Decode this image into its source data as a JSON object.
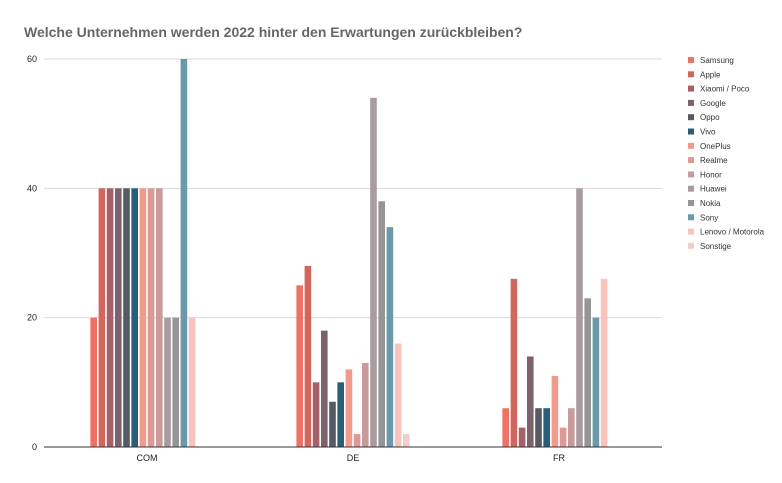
{
  "chart_data": {
    "type": "bar",
    "title": "Welche Unternehmen werden 2022 hinter den Erwartungen zurückbleiben?",
    "xlabel": "",
    "ylabel": "",
    "categories": [
      "COM",
      "DE",
      "FR"
    ],
    "ylim": [
      0,
      60
    ],
    "yticks": [
      0,
      20,
      40,
      60
    ],
    "grid": true,
    "legend_position": "right",
    "series": [
      {
        "name": "Samsung",
        "color": "#ee7163",
        "values": [
          20,
          25,
          6
        ]
      },
      {
        "name": "Apple",
        "color": "#d0665e",
        "values": [
          40,
          28,
          26
        ]
      },
      {
        "name": "Xiaomi / Poco",
        "color": "#a5606a",
        "values": [
          40,
          10,
          3
        ]
      },
      {
        "name": "Google",
        "color": "#7d616c",
        "values": [
          40,
          18,
          14
        ]
      },
      {
        "name": "Oppo",
        "color": "#555a64",
        "values": [
          40,
          7,
          6
        ]
      },
      {
        "name": "Vivo",
        "color": "#295d7a",
        "values": [
          40,
          10,
          6
        ]
      },
      {
        "name": "OnePlus",
        "color": "#f29a8c",
        "values": [
          40,
          12,
          11
        ]
      },
      {
        "name": "Realme",
        "color": "#dc9a94",
        "values": [
          40,
          2,
          3
        ]
      },
      {
        "name": "Honor",
        "color": "#c89a9a",
        "values": [
          40,
          13,
          6
        ]
      },
      {
        "name": "Huawei",
        "color": "#a89ca0",
        "values": [
          20,
          54,
          40
        ]
      },
      {
        "name": "Nokia",
        "color": "#959598",
        "values": [
          20,
          38,
          23
        ]
      },
      {
        "name": "Sony",
        "color": "#6a9aaa",
        "values": [
          60,
          34,
          20
        ]
      },
      {
        "name": "Lenovo / Motorola",
        "color": "#f7c3bb",
        "values": [
          20,
          16,
          26
        ]
      },
      {
        "name": "Sonstige",
        "color": "#efcfcd",
        "values": [
          0,
          2,
          0
        ]
      }
    ]
  }
}
